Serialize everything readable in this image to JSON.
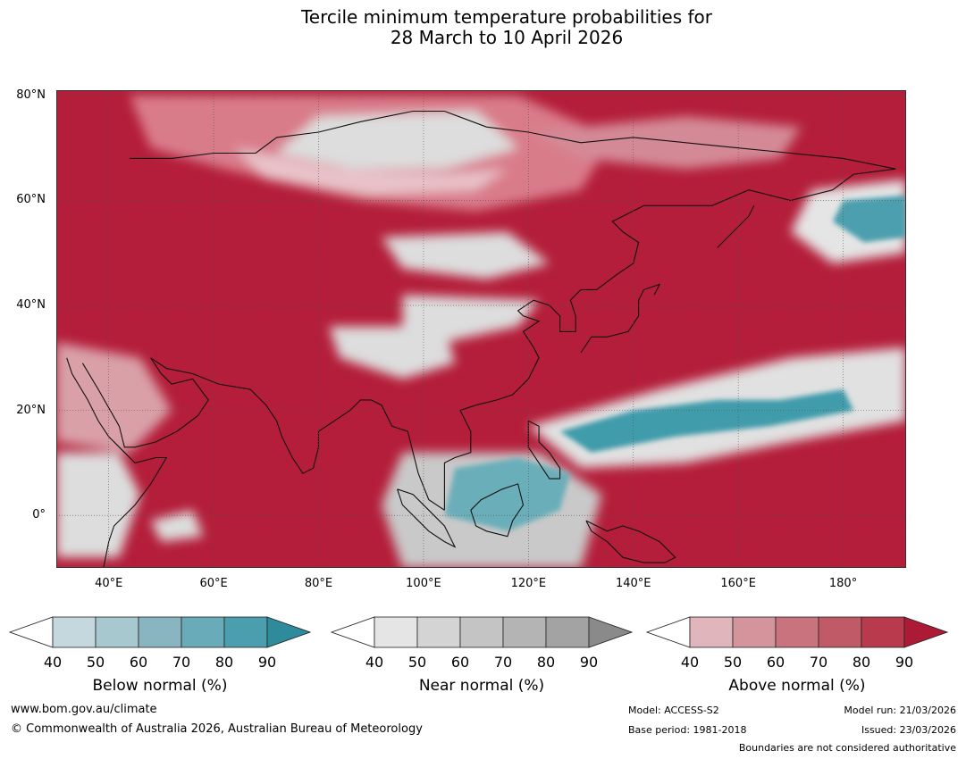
{
  "title": {
    "line1": "Tercile minimum temperature probabilities for",
    "line2": "28 March to 10 April 2026"
  },
  "map": {
    "lat_labels": [
      "80°N",
      "60°N",
      "40°N",
      "20°N",
      "0°"
    ],
    "lon_labels": [
      "40°E",
      "60°E",
      "80°E",
      "100°E",
      "120°E",
      "140°E",
      "160°E",
      "180°"
    ],
    "extent": {
      "lon_min": 30,
      "lon_max": 192,
      "lat_min": -10,
      "lat_max": 81
    },
    "gridlines": true,
    "colors": {
      "above_dominant": "#b41e3a",
      "near_normal": "#d9d9d9",
      "below_normal": "#3d9aa9"
    }
  },
  "colorbars": [
    {
      "name": "below",
      "title": "Below normal (%)",
      "ticks": [
        "40",
        "50",
        "60",
        "70",
        "80",
        "90"
      ],
      "colors": [
        "#ffffff",
        "#c4d8de",
        "#a6c8ce",
        "#88b5bf",
        "#69abb8",
        "#4a9eae",
        "#2e8b9b"
      ]
    },
    {
      "name": "near",
      "title": "Near normal (%)",
      "ticks": [
        "40",
        "50",
        "60",
        "70",
        "80",
        "90"
      ],
      "colors": [
        "#ffffff",
        "#e5e5e5",
        "#d4d4d4",
        "#c4c4c4",
        "#b4b4b4",
        "#a3a3a3",
        "#8a8a8a"
      ]
    },
    {
      "name": "above",
      "title": "Above normal (%)",
      "ticks": [
        "40",
        "50",
        "60",
        "70",
        "80",
        "90"
      ],
      "colors": [
        "#ffffff",
        "#e0b6bc",
        "#d4949c",
        "#c8737e",
        "#c05a67",
        "#b83a4c",
        "#ad1a35"
      ]
    }
  ],
  "footer": {
    "url": "www.bom.gov.au/climate",
    "copyright": "© Commonwealth of Australia 2026, Australian Bureau of Meteorology",
    "model": "Model: ACCESS-S2",
    "base_period": "Base period: 1981-2018",
    "model_run": "Model run: 21/03/2026",
    "issued": "Issued: 23/03/2026",
    "boundaries": "Boundaries are not considered authoritative"
  }
}
